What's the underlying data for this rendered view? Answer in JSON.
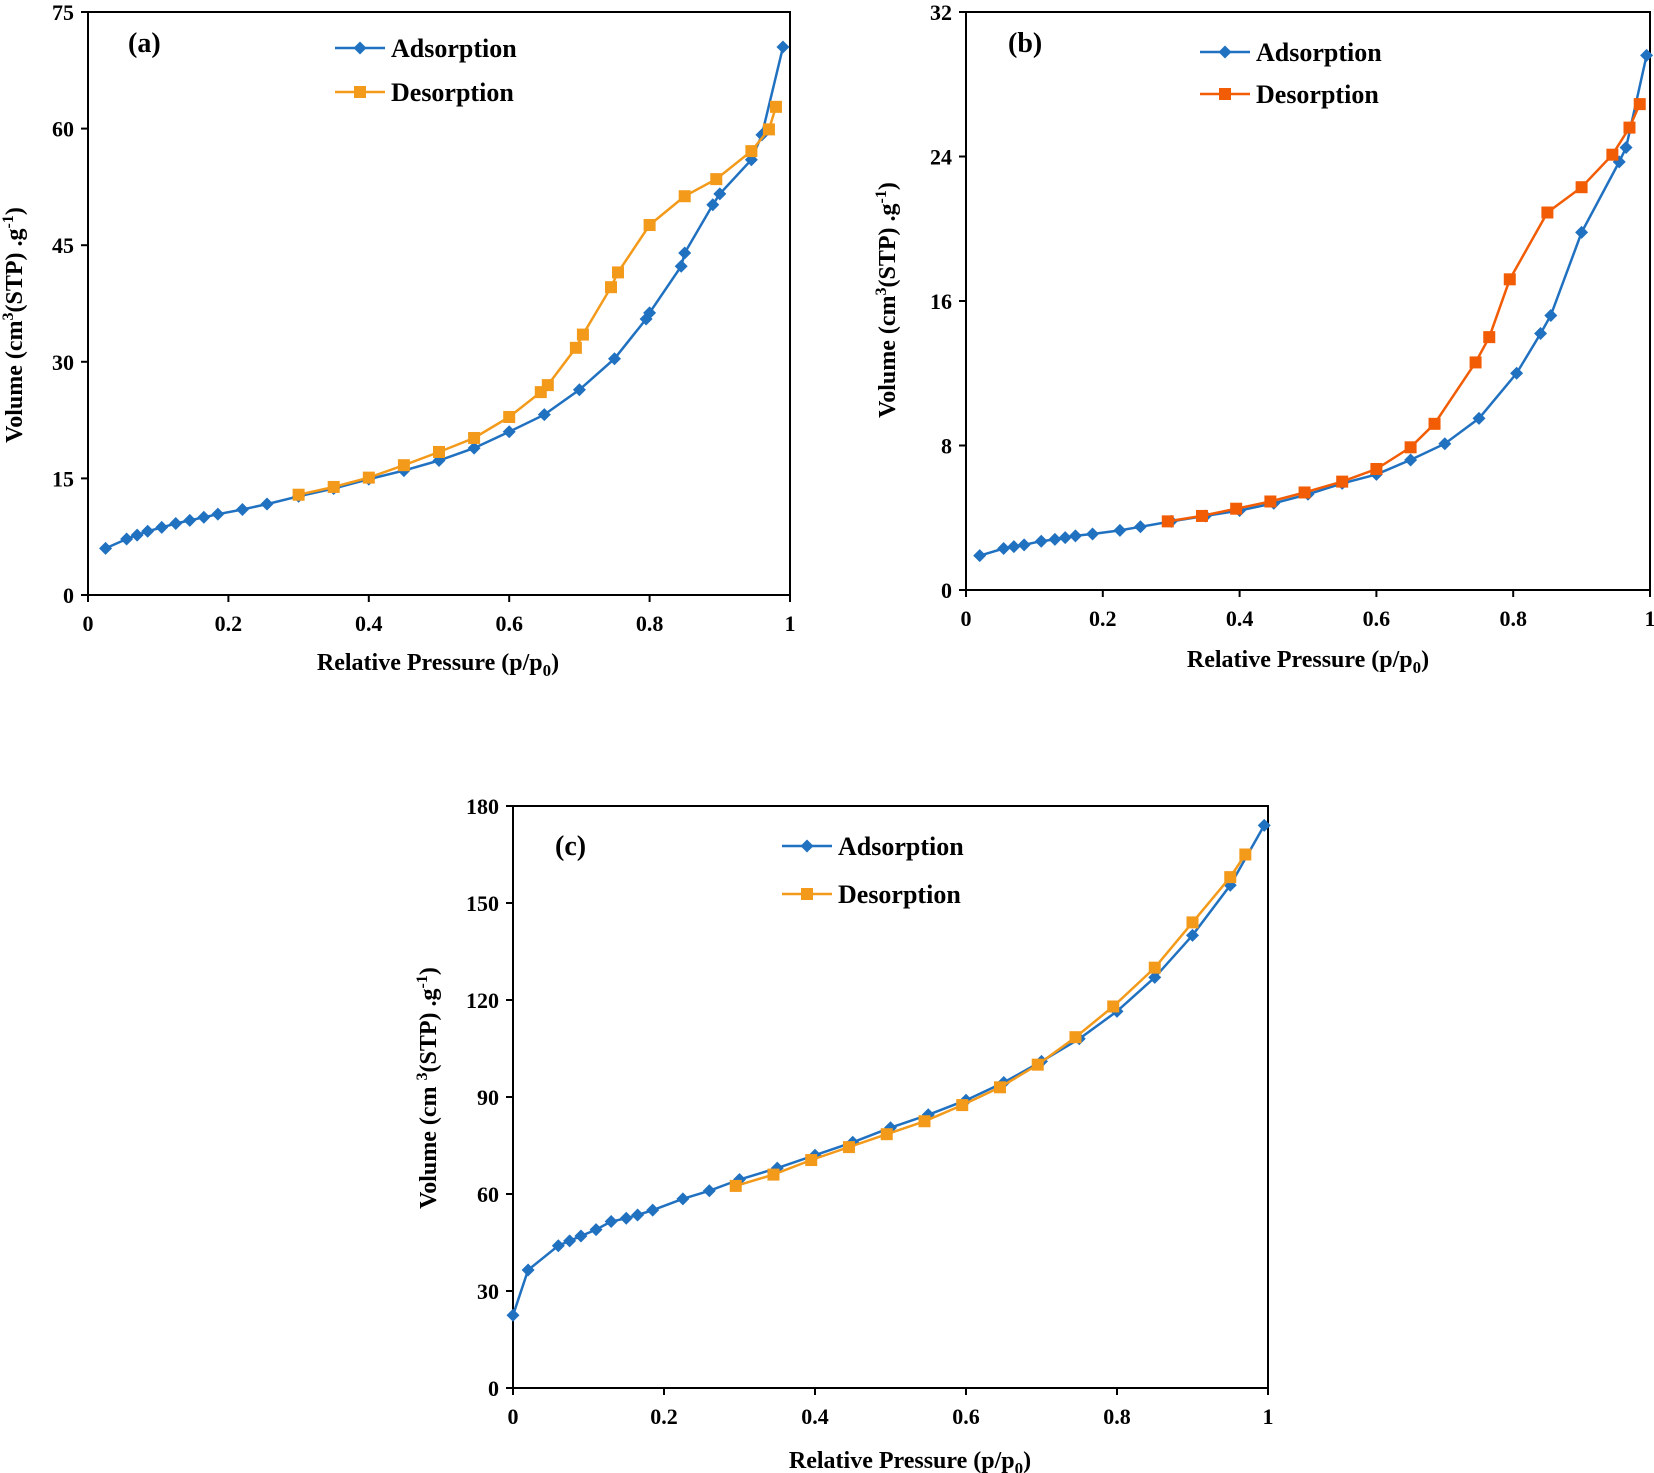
{
  "figure": {
    "colors": {
      "adsorption": "#2171C1",
      "desorption": "#F39A1A"
    }
  },
  "chart_data": [
    {
      "type": "line",
      "panel_label": "(a)",
      "xlabel": "Relative Pressure (p/p",
      "xlabel_sub": "0",
      "xlabel_end": ")",
      "ylabel": "Volume (cm",
      "ylabel_sup": "3",
      "ylabel_mid": "(STP) .g",
      "ylabel_sup2": "-1",
      "ylabel_end": ")",
      "xlim": [
        0,
        1
      ],
      "ylim": [
        0,
        75
      ],
      "xticks": [
        0,
        0.2,
        0.4,
        0.6,
        0.8,
        1
      ],
      "xtick_labels": [
        "0",
        "0.2",
        "0.4",
        "0.6",
        "0.8",
        "1"
      ],
      "yticks": [
        0,
        15,
        30,
        45,
        60,
        75
      ],
      "ytick_labels": [
        "0",
        "15",
        "30",
        "45",
        "60",
        "75"
      ],
      "legend": "top-center",
      "series": [
        {
          "name": "Adsorption",
          "marker": "diamond",
          "color": "#2171C1",
          "x": [
            0.025,
            0.055,
            0.07,
            0.085,
            0.105,
            0.125,
            0.145,
            0.165,
            0.185,
            0.22,
            0.255,
            0.3,
            0.35,
            0.4,
            0.45,
            0.5,
            0.55,
            0.6,
            0.65,
            0.7,
            0.75,
            0.795,
            0.8,
            0.845,
            0.85,
            0.89,
            0.9,
            0.945,
            0.96,
            0.99
          ],
          "y": [
            6.0,
            7.2,
            7.7,
            8.2,
            8.7,
            9.2,
            9.6,
            10.0,
            10.4,
            11.0,
            11.7,
            12.7,
            13.7,
            14.9,
            16.0,
            17.3,
            18.9,
            21.0,
            23.2,
            26.4,
            30.4,
            35.5,
            36.3,
            42.3,
            44.0,
            50.2,
            51.6,
            56.0,
            59.2,
            70.5
          ]
        },
        {
          "name": "Desorption",
          "marker": "square",
          "color": "#F39A1A",
          "x": [
            0.3,
            0.35,
            0.4,
            0.45,
            0.5,
            0.55,
            0.6,
            0.645,
            0.655,
            0.695,
            0.705,
            0.745,
            0.755,
            0.8,
            0.85,
            0.895,
            0.945,
            0.97,
            0.98
          ],
          "y": [
            12.9,
            13.9,
            15.1,
            16.7,
            18.4,
            20.2,
            22.9,
            26.1,
            27.0,
            31.8,
            33.5,
            39.6,
            41.5,
            47.6,
            51.3,
            53.5,
            57.1,
            59.9,
            62.8
          ]
        }
      ]
    },
    {
      "type": "line",
      "panel_label": "(b)",
      "xlabel": "Relative Pressure (p/p",
      "xlabel_sub": "0",
      "xlabel_end": ")",
      "ylabel": "Volume (cm",
      "ylabel_sup": "3",
      "ylabel_mid": "(STP) .g",
      "ylabel_sup2": "-1",
      "ylabel_end": ")",
      "xlim": [
        0,
        1
      ],
      "ylim": [
        0,
        32
      ],
      "xticks": [
        0,
        0.2,
        0.4,
        0.6,
        0.8,
        1
      ],
      "xtick_labels": [
        "0",
        "0.2",
        "0.4",
        "0.6",
        "0.8",
        "1"
      ],
      "yticks": [
        0,
        8,
        16,
        24,
        32
      ],
      "ytick_labels": [
        "0",
        "8",
        "16",
        "24",
        "32"
      ],
      "legend": "top-center",
      "series": [
        {
          "name": "Adsorption",
          "marker": "diamond",
          "color": "#2171C1",
          "x": [
            0.02,
            0.055,
            0.07,
            0.085,
            0.11,
            0.13,
            0.145,
            0.16,
            0.185,
            0.225,
            0.255,
            0.3,
            0.35,
            0.4,
            0.45,
            0.5,
            0.55,
            0.6,
            0.65,
            0.7,
            0.75,
            0.805,
            0.84,
            0.855,
            0.9,
            0.955,
            0.965,
            0.995
          ],
          "y": [
            1.9,
            2.3,
            2.4,
            2.5,
            2.7,
            2.8,
            2.9,
            3.0,
            3.1,
            3.3,
            3.5,
            3.8,
            4.1,
            4.4,
            4.8,
            5.3,
            5.9,
            6.4,
            7.2,
            8.1,
            9.5,
            12.0,
            14.2,
            15.2,
            19.8,
            23.7,
            24.5,
            29.6
          ]
        },
        {
          "name": "Desorption",
          "marker": "square",
          "color": "#F25C05",
          "x": [
            0.295,
            0.345,
            0.395,
            0.445,
            0.495,
            0.55,
            0.6,
            0.65,
            0.685,
            0.745,
            0.765,
            0.795,
            0.85,
            0.9,
            0.945,
            0.97,
            0.985
          ],
          "y": [
            3.8,
            4.1,
            4.5,
            4.9,
            5.4,
            6.0,
            6.7,
            7.9,
            9.2,
            12.6,
            14.0,
            17.2,
            20.9,
            22.3,
            24.1,
            25.6,
            26.9
          ]
        }
      ]
    },
    {
      "type": "line",
      "panel_label": "(c)",
      "xlabel": "Relative Pressure (p/p",
      "xlabel_sub": "0",
      "xlabel_end": ")",
      "ylabel": "Volume (cm ",
      "ylabel_sup": "3",
      "ylabel_mid": "(STP) .g",
      "ylabel_sup2": "-1",
      "ylabel_end": ")",
      "xlim": [
        0,
        1
      ],
      "ylim": [
        0,
        180
      ],
      "xticks": [
        0,
        0.2,
        0.4,
        0.6,
        0.8,
        1
      ],
      "xtick_labels": [
        "0",
        "0.2",
        "0.4",
        "0.6",
        "0.8",
        "1"
      ],
      "yticks": [
        0,
        30,
        60,
        90,
        120,
        150,
        180
      ],
      "ytick_labels": [
        "0",
        "30",
        "60",
        "90",
        "120",
        "150",
        "180"
      ],
      "legend": "top-center",
      "series": [
        {
          "name": "Adsorption",
          "marker": "diamond",
          "color": "#2171C1",
          "x": [
            0.0,
            0.02,
            0.06,
            0.075,
            0.09,
            0.11,
            0.13,
            0.15,
            0.165,
            0.185,
            0.225,
            0.26,
            0.3,
            0.35,
            0.4,
            0.45,
            0.5,
            0.55,
            0.6,
            0.65,
            0.7,
            0.75,
            0.8,
            0.85,
            0.9,
            0.95,
            0.995
          ],
          "y": [
            22.5,
            36.5,
            44.0,
            45.5,
            47.0,
            49.0,
            51.5,
            52.5,
            53.5,
            55.0,
            58.5,
            61.0,
            64.5,
            68.0,
            72.0,
            76.0,
            80.5,
            84.5,
            89.0,
            94.5,
            101.0,
            108.0,
            116.5,
            127.0,
            140.0,
            155.5,
            174.0
          ]
        },
        {
          "name": "Desorption",
          "marker": "square",
          "color": "#F39A1A",
          "x": [
            0.295,
            0.345,
            0.395,
            0.445,
            0.495,
            0.545,
            0.595,
            0.645,
            0.695,
            0.745,
            0.795,
            0.85,
            0.9,
            0.95,
            0.97
          ],
          "y": [
            62.5,
            66.0,
            70.5,
            74.5,
            78.5,
            82.5,
            87.5,
            93.0,
            100.0,
            108.5,
            118.0,
            130.0,
            144.0,
            158.0,
            165.0
          ]
        }
      ]
    }
  ]
}
